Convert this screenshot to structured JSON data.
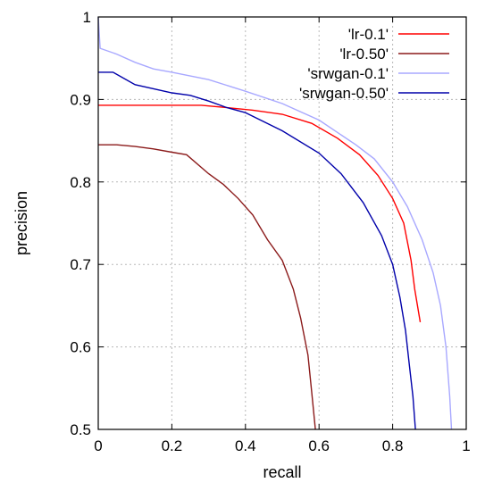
{
  "chart_data": {
    "type": "line",
    "title": "",
    "xlabel": "recall",
    "ylabel": "precision",
    "xlim": [
      0,
      1
    ],
    "ylim": [
      0.5,
      1
    ],
    "x_ticks": [
      "0",
      "0.2",
      "0.4",
      "0.6",
      "0.8",
      "1"
    ],
    "y_ticks": [
      "0.5",
      "0.6",
      "0.7",
      "0.8",
      "0.9",
      "1"
    ],
    "x_tick_values": [
      0,
      0.2,
      0.4,
      0.6,
      0.8,
      1
    ],
    "y_tick_values": [
      0.5,
      0.6,
      0.7,
      0.8,
      0.9,
      1
    ],
    "grid": true,
    "legend_position": "top-right",
    "series": [
      {
        "name": "'lr-0.1'",
        "color": "#ff0000",
        "points": [
          [
            0,
            0.893
          ],
          [
            0.1,
            0.893
          ],
          [
            0.2,
            0.893
          ],
          [
            0.28,
            0.893
          ],
          [
            0.35,
            0.89
          ],
          [
            0.42,
            0.887
          ],
          [
            0.5,
            0.882
          ],
          [
            0.58,
            0.871
          ],
          [
            0.65,
            0.853
          ],
          [
            0.71,
            0.833
          ],
          [
            0.76,
            0.808
          ],
          [
            0.8,
            0.78
          ],
          [
            0.83,
            0.75
          ],
          [
            0.85,
            0.705
          ],
          [
            0.86,
            0.67
          ],
          [
            0.875,
            0.63
          ]
        ]
      },
      {
        "name": "'lr-0.50'",
        "color": "#8b1a1a",
        "points": [
          [
            0,
            0.845
          ],
          [
            0.05,
            0.845
          ],
          [
            0.1,
            0.843
          ],
          [
            0.15,
            0.84
          ],
          [
            0.2,
            0.836
          ],
          [
            0.24,
            0.833
          ],
          [
            0.3,
            0.81
          ],
          [
            0.34,
            0.797
          ],
          [
            0.38,
            0.78
          ],
          [
            0.42,
            0.76
          ],
          [
            0.46,
            0.73
          ],
          [
            0.5,
            0.705
          ],
          [
            0.53,
            0.67
          ],
          [
            0.55,
            0.635
          ],
          [
            0.57,
            0.59
          ],
          [
            0.58,
            0.545
          ],
          [
            0.59,
            0.5
          ]
        ]
      },
      {
        "name": "'srwgan-0.1'",
        "color": "#a8a8ff",
        "points": [
          [
            0,
            1.0
          ],
          [
            0.005,
            0.962
          ],
          [
            0.05,
            0.955
          ],
          [
            0.1,
            0.945
          ],
          [
            0.15,
            0.937
          ],
          [
            0.2,
            0.933
          ],
          [
            0.3,
            0.924
          ],
          [
            0.4,
            0.91
          ],
          [
            0.5,
            0.895
          ],
          [
            0.6,
            0.875
          ],
          [
            0.7,
            0.845
          ],
          [
            0.75,
            0.828
          ],
          [
            0.8,
            0.8
          ],
          [
            0.84,
            0.77
          ],
          [
            0.88,
            0.73
          ],
          [
            0.91,
            0.69
          ],
          [
            0.93,
            0.65
          ],
          [
            0.945,
            0.6
          ],
          [
            0.955,
            0.54
          ],
          [
            0.96,
            0.5
          ]
        ]
      },
      {
        "name": "'srwgan-0.50'",
        "color": "#0000aa",
        "points": [
          [
            0,
            0.933
          ],
          [
            0.04,
            0.933
          ],
          [
            0.1,
            0.918
          ],
          [
            0.15,
            0.913
          ],
          [
            0.2,
            0.908
          ],
          [
            0.25,
            0.905
          ],
          [
            0.3,
            0.898
          ],
          [
            0.35,
            0.89
          ],
          [
            0.4,
            0.884
          ],
          [
            0.5,
            0.862
          ],
          [
            0.6,
            0.835
          ],
          [
            0.66,
            0.81
          ],
          [
            0.72,
            0.775
          ],
          [
            0.77,
            0.735
          ],
          [
            0.8,
            0.7
          ],
          [
            0.82,
            0.66
          ],
          [
            0.835,
            0.62
          ],
          [
            0.845,
            0.58
          ],
          [
            0.855,
            0.54
          ],
          [
            0.862,
            0.5
          ]
        ]
      }
    ]
  }
}
